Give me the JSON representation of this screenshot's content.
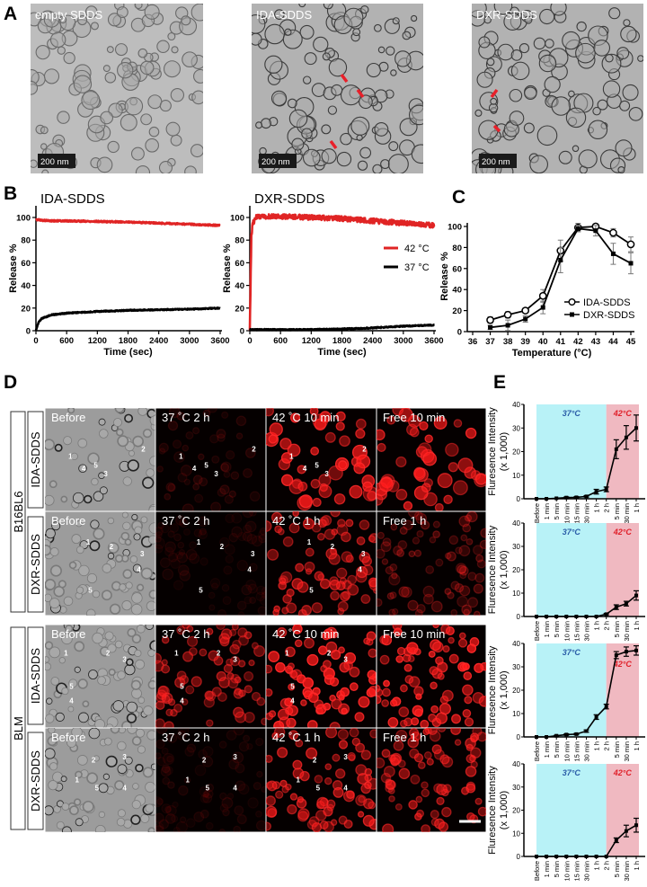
{
  "panel_letters": {
    "A": "A",
    "B": "B",
    "C": "C",
    "D": "D",
    "E": "E"
  },
  "panel_a": {
    "micrographs": [
      {
        "title": "empty SDDS",
        "scale_bar": "200 nm",
        "arrows": 0
      },
      {
        "title": "IDA-SDDS",
        "scale_bar": "200 nm",
        "arrows": 3
      },
      {
        "title": "DXR-SDDS",
        "scale_bar": "200 nm",
        "arrows": 2
      }
    ],
    "arrow_color": "#e8202a"
  },
  "panel_d": {
    "groups": [
      {
        "cell_line": "B16BL6"
      },
      {
        "cell_line": "BLM"
      }
    ],
    "rows": [
      {
        "drug": "IDA-SDDS",
        "titles": [
          "Before",
          "37 ˚C 2 h",
          "42 ˚C 10 min",
          "Free 10 min"
        ],
        "markers": [
          "1",
          "2",
          "3",
          "4",
          "5"
        ]
      },
      {
        "drug": "DXR-SDDS",
        "titles": [
          "Before",
          "37 ˚C 2 h",
          "42 ˚C 1 h",
          "Free 1 h"
        ],
        "markers": [
          "1",
          "2",
          "3",
          "4",
          "5"
        ]
      },
      {
        "drug": "IDA-SDDS",
        "titles": [
          "Before",
          "37 ˚C 2 h",
          "42 ˚C 10 min",
          "Free 10 min"
        ],
        "markers": [
          "1",
          "2",
          "3",
          "4",
          "5"
        ]
      },
      {
        "drug": "DXR-SDDS",
        "titles": [
          "Before",
          "37 ˚C 2 h",
          "42 ˚C 1 h",
          "Free 1 h"
        ],
        "markers": [
          "1",
          "2",
          "3",
          "4",
          "5"
        ]
      }
    ]
  },
  "chart_data": [
    {
      "panel": "B",
      "type": "line",
      "title": "IDA-SDDS",
      "xlabel": "Time (sec)",
      "ylabel": "Release %",
      "xlim": [
        0,
        3600
      ],
      "ylim": [
        0,
        110
      ],
      "xticks": [
        "0",
        "600",
        "1200",
        "1800",
        "2400",
        "3000",
        "3600"
      ],
      "yticks": [
        "0",
        "20",
        "40",
        "60",
        "80",
        "100"
      ],
      "grid": false,
      "series": [
        {
          "name": "42 °C",
          "color": "#e02424",
          "x": [
            0,
            30,
            60,
            120,
            300,
            600,
            1200,
            1800,
            2400,
            3000,
            3600
          ],
          "y": [
            98,
            98,
            98,
            97.5,
            97,
            97,
            96.5,
            96,
            95,
            94,
            93
          ]
        },
        {
          "name": "37 °C",
          "color": "#000000",
          "x": [
            0,
            30,
            60,
            120,
            300,
            600,
            1200,
            1800,
            2400,
            3000,
            3600
          ],
          "y": [
            0,
            5,
            8,
            11,
            14,
            15.5,
            17,
            18,
            18.5,
            19,
            20
          ]
        }
      ]
    },
    {
      "panel": "B",
      "type": "line",
      "title": "DXR-SDDS",
      "xlabel": "Time (sec)",
      "ylabel": "Release %",
      "xlim": [
        0,
        3600
      ],
      "ylim": [
        0,
        110
      ],
      "xticks": [
        "0",
        "600",
        "1200",
        "1800",
        "2400",
        "3000",
        "3600"
      ],
      "yticks": [
        "0",
        "20",
        "40",
        "60",
        "80",
        "100"
      ],
      "grid": false,
      "legend": "right",
      "series": [
        {
          "name": "42 °C",
          "color": "#e02424",
          "x": [
            0,
            30,
            60,
            120,
            300,
            600,
            1200,
            1800,
            2400,
            3000,
            3600
          ],
          "y": [
            0,
            85,
            95,
            100,
            101,
            101,
            100,
            99,
            97,
            95,
            93
          ]
        },
        {
          "name": "37 °C",
          "color": "#000000",
          "x": [
            0,
            30,
            60,
            120,
            300,
            600,
            1200,
            1800,
            2400,
            3000,
            3600
          ],
          "y": [
            1,
            1,
            1,
            1,
            1,
            1,
            1,
            1.5,
            2.5,
            4,
            5
          ]
        }
      ]
    },
    {
      "panel": "C",
      "type": "line",
      "xlabel": "Temperature (°C)",
      "ylabel": "Release %",
      "xlim": [
        36,
        45
      ],
      "ylim": [
        0,
        105
      ],
      "xticks": [
        "36",
        "37",
        "38",
        "39",
        "40",
        "41",
        "42",
        "43",
        "44",
        "45"
      ],
      "yticks": [
        "0",
        "20",
        "40",
        "60",
        "80",
        "100"
      ],
      "grid": false,
      "legend": "bottom-right",
      "series": [
        {
          "name": "IDA-SDDS",
          "marker": "open-circle",
          "x": [
            37,
            38,
            39,
            40,
            41,
            42,
            43,
            44,
            45
          ],
          "y": [
            11,
            16,
            20,
            34,
            77,
            99,
            100,
            94,
            83
          ],
          "error": [
            3,
            3,
            2,
            6,
            10,
            4,
            2,
            4,
            7
          ]
        },
        {
          "name": "DXR-SDDS",
          "marker": "filled-square",
          "x": [
            37,
            38,
            39,
            40,
            41,
            42,
            43,
            44,
            45
          ],
          "y": [
            4,
            6,
            12,
            23,
            68,
            98,
            96,
            74,
            65
          ],
          "error": [
            2,
            5,
            3,
            6,
            12,
            3,
            5,
            10,
            10
          ]
        }
      ]
    },
    {
      "panel": "E",
      "type": "line",
      "ylabel": "Fluresence Intensity",
      "ylabel2": "(x 1,000)",
      "ylim": [
        0,
        40
      ],
      "yticks": [
        "0",
        "10",
        "20",
        "30",
        "40"
      ],
      "categories": [
        "Before",
        "1 min",
        "5 min",
        "10 min",
        "15 min",
        "30 min",
        "1 h",
        "2 h",
        "5 min",
        "30 min",
        "1 h"
      ],
      "values": [
        0,
        0,
        0.2,
        0.5,
        0.6,
        1,
        3,
        4,
        21,
        26,
        30
      ],
      "error": [
        0,
        0,
        0,
        0.3,
        0.3,
        0.3,
        1,
        1,
        4,
        5,
        5.5
      ],
      "regions": [
        {
          "label": "37°C",
          "from": 0,
          "to": 7,
          "color": "#b8f2f7",
          "text_color": "#2b5ea8"
        },
        {
          "label": "42°C",
          "from": 7,
          "to": 10,
          "color": "#f0b9c1",
          "text_color": "#e0202a"
        }
      ]
    },
    {
      "panel": "E",
      "type": "line",
      "ylabel": "Fluresence Intensity",
      "ylabel2": "(x 1,000)",
      "ylim": [
        0,
        40
      ],
      "yticks": [
        "0",
        "10",
        "20",
        "30",
        "40"
      ],
      "categories": [
        "Before",
        "1 min",
        "5 min",
        "10 min",
        "15 min",
        "30 min",
        "1 h",
        "2 h",
        "5 min",
        "30 min",
        "1 h"
      ],
      "values": [
        0,
        0,
        0,
        0,
        0,
        0,
        0,
        1,
        4,
        5.5,
        9
      ],
      "error": [
        0,
        0,
        0,
        0,
        0,
        0,
        0,
        0.3,
        1,
        1,
        2
      ],
      "regions": [
        {
          "label": "37°C",
          "from": 0,
          "to": 7,
          "color": "#b8f2f7",
          "text_color": "#2b5ea8"
        },
        {
          "label": "42°C",
          "from": 7,
          "to": 10,
          "color": "#f0b9c1",
          "text_color": "#e0202a"
        }
      ]
    },
    {
      "panel": "E",
      "type": "line",
      "ylabel": "Fluresence Intensity",
      "ylabel2": "(x 1,000)",
      "ylim": [
        0,
        40
      ],
      "yticks": [
        "0",
        "10",
        "20",
        "30",
        "40"
      ],
      "categories": [
        "Before",
        "1 min",
        "5 min",
        "10 min",
        "15 min",
        "30 min",
        "1 h",
        "2 h",
        "5 min",
        "30 min",
        "1 h"
      ],
      "values": [
        0,
        0,
        0.5,
        1,
        1.2,
        2.5,
        8.5,
        13,
        35,
        36.5,
        37
      ],
      "error": [
        0,
        0,
        0.2,
        0.3,
        0.3,
        0.5,
        1,
        1,
        1.5,
        2,
        2
      ],
      "regions": [
        {
          "label": "37°C",
          "from": 0,
          "to": 7,
          "color": "#b8f2f7",
          "text_color": "#2b5ea8"
        },
        {
          "label": "42°C",
          "from": 7,
          "to": 10,
          "color": "#f0b9c1",
          "text_color": "#e0202a"
        }
      ]
    },
    {
      "panel": "E",
      "type": "line",
      "ylabel": "Fluresence Intensity",
      "ylabel2": "(x 1,000)",
      "ylim": [
        0,
        40
      ],
      "yticks": [
        "0",
        "10",
        "20",
        "30",
        "40"
      ],
      "categories": [
        "Before",
        "1 min",
        "5 min",
        "10 min",
        "15 min",
        "30 min",
        "1 h",
        "2 h",
        "5 min",
        "30 min",
        "1 h"
      ],
      "values": [
        0,
        0,
        0,
        0,
        0,
        0,
        0,
        0,
        7,
        11,
        13.5
      ],
      "error": [
        0,
        0,
        0,
        0,
        0,
        0,
        0,
        0,
        1,
        2.5,
        3
      ],
      "regions": [
        {
          "label": "37°C",
          "from": 0,
          "to": 7,
          "color": "#b8f2f7",
          "text_color": "#2b5ea8"
        },
        {
          "label": "42°C",
          "from": 7,
          "to": 10,
          "color": "#f0b9c1",
          "text_color": "#e0202a"
        }
      ]
    }
  ]
}
